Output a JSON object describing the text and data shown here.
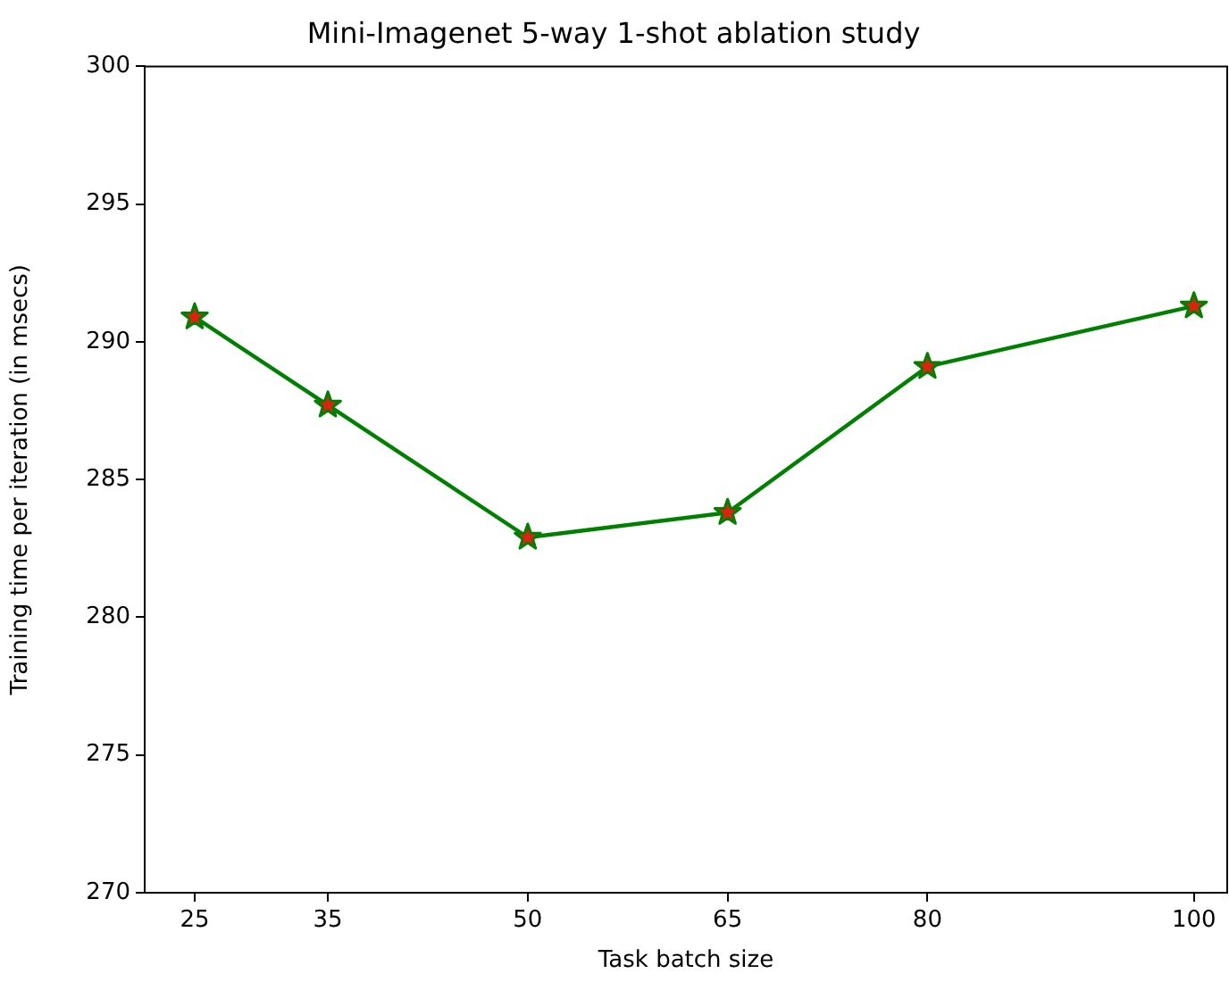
{
  "chart_data": {
    "type": "line",
    "title": "Mini-Imagenet 5-way 1-shot ablation study",
    "xlabel": "Task batch size",
    "ylabel": "Training time per iteration (in msecs)",
    "x": [
      25,
      35,
      50,
      65,
      80,
      100
    ],
    "series": [
      {
        "color": "#008000",
        "values": [
          290.9,
          287.7,
          282.9,
          283.8,
          289.1,
          291.3
        ]
      }
    ],
    "xlim": [
      21.25,
      102.5
    ],
    "xticks": [
      25,
      35,
      50,
      65,
      80,
      100
    ],
    "ylim": [
      270,
      300
    ],
    "yticks": [
      270,
      275,
      280,
      285,
      290,
      295,
      300
    ],
    "grid": false,
    "legend": false,
    "marker": "star",
    "line_style": "solid"
  }
}
